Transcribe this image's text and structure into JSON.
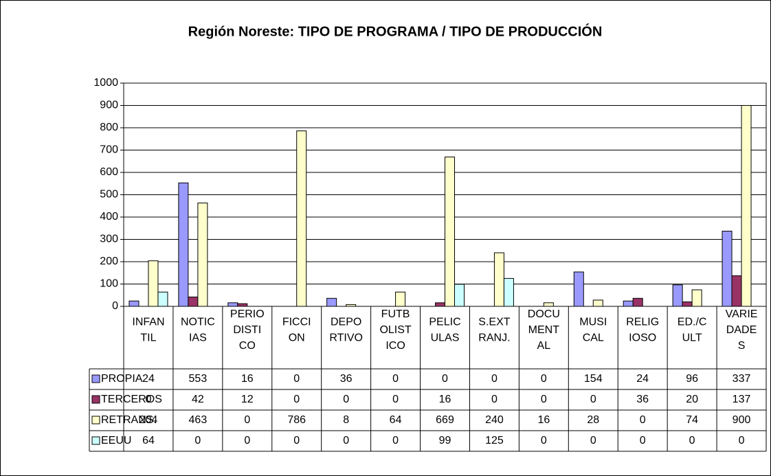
{
  "chart_data": {
    "type": "bar",
    "title": "Región Noreste: TIPO DE PROGRAMA / TIPO DE PRODUCCIÓN",
    "categories": [
      "INFANTIL",
      "NOTICIAS",
      "PERIODISTICO",
      "FICCION",
      "DEPORTIVO",
      "FUTBOLISTICO",
      "PELICULAS",
      "S.EXTRANJ.",
      "DOCUMENTAL",
      "MUSICAL",
      "RELIGIOSO",
      "ED./CULT",
      "VARIEDADES"
    ],
    "series": [
      {
        "name": "PROPIA",
        "color": "#9999ff",
        "values": [
          24,
          553,
          16,
          0,
          36,
          0,
          0,
          0,
          0,
          154,
          24,
          96,
          337
        ]
      },
      {
        "name": "TERCEROS",
        "color": "#993366",
        "values": [
          0,
          42,
          12,
          0,
          0,
          0,
          16,
          0,
          0,
          0,
          36,
          20,
          137
        ]
      },
      {
        "name": "RETRANS.",
        "color": "#ffffcc",
        "values": [
          204,
          463,
          0,
          786,
          8,
          64,
          669,
          240,
          16,
          28,
          0,
          74,
          900
        ]
      },
      {
        "name": "EEUU",
        "color": "#ccffff",
        "values": [
          64,
          0,
          0,
          0,
          0,
          0,
          99,
          125,
          0,
          0,
          0,
          0,
          0
        ]
      }
    ],
    "ylim": [
      0,
      1000
    ],
    "yticks": [
      0,
      100,
      200,
      300,
      400,
      500,
      600,
      700,
      800,
      900,
      1000
    ],
    "grid": true
  }
}
